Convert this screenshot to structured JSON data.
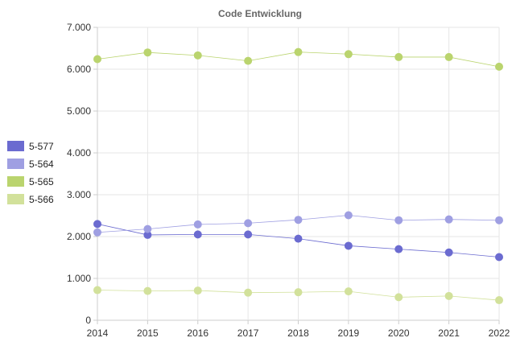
{
  "chart_data": {
    "type": "line",
    "title": "Code Entwicklung",
    "xlabel": "",
    "ylabel": "",
    "x": [
      "2014",
      "2015",
      "2016",
      "2017",
      "2018",
      "2019",
      "2020",
      "2021",
      "2022"
    ],
    "ylim": [
      0,
      7000
    ],
    "yticks": [
      0,
      1000,
      2000,
      3000,
      4000,
      5000,
      6000,
      7000
    ],
    "ytick_labels": [
      "0",
      "1.000",
      "2.000",
      "3.000",
      "4.000",
      "5.000",
      "6.000",
      "7.000"
    ],
    "grid": true,
    "legend_position": "left",
    "series": [
      {
        "name": "5-577",
        "color": "#6b6bd0",
        "values": [
          2300,
          2040,
          2050,
          2050,
          1950,
          1780,
          1700,
          1620,
          1510
        ]
      },
      {
        "name": "5-564",
        "color": "#9f9fe2",
        "values": [
          2100,
          2180,
          2290,
          2320,
          2400,
          2510,
          2390,
          2410,
          2390
        ]
      },
      {
        "name": "5-565",
        "color": "#bad46e",
        "values": [
          6240,
          6400,
          6330,
          6200,
          6410,
          6360,
          6290,
          6290,
          6060
        ]
      },
      {
        "name": "5-566",
        "color": "#d2e19b",
        "values": [
          720,
          700,
          710,
          660,
          670,
          690,
          550,
          580,
          480
        ]
      }
    ]
  }
}
